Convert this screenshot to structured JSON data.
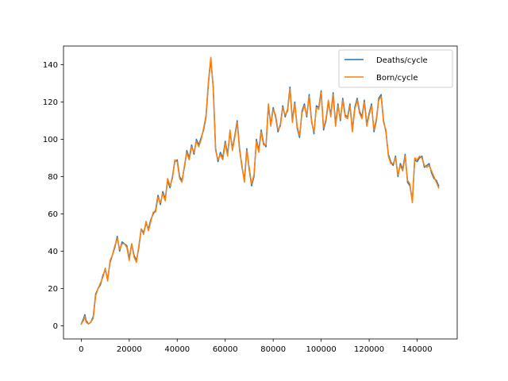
{
  "chart_data": {
    "type": "line",
    "title": "",
    "xlabel": "",
    "ylabel": "",
    "xlim": [
      -7400,
      156700
    ],
    "ylim": [
      -7,
      150
    ],
    "x_ticks": [
      0,
      20000,
      40000,
      60000,
      80000,
      100000,
      120000,
      140000
    ],
    "y_ticks": [
      0,
      20,
      40,
      60,
      80,
      100,
      120,
      140
    ],
    "grid": false,
    "legend": "top-right",
    "series": [
      {
        "name": "Deaths/cycle",
        "color": "#1f77b4",
        "x": [
          0,
          1000,
          1500,
          2000,
          3000,
          4000,
          5000,
          6000,
          7000,
          8000,
          9000,
          10000,
          11000,
          12000,
          13000,
          14000,
          15000,
          16000,
          17000,
          18000,
          19000,
          20000,
          21000,
          22000,
          23000,
          24000,
          25000,
          26000,
          27000,
          28000,
          29000,
          30000,
          31000,
          32000,
          33000,
          34000,
          35000,
          36000,
          37000,
          38000,
          39000,
          40000,
          41000,
          42000,
          43000,
          44000,
          45000,
          46000,
          47000,
          48000,
          49000,
          50000,
          51000,
          52000,
          53000,
          54000,
          55000,
          56000,
          57000,
          58000,
          59000,
          60000,
          61000,
          62000,
          63000,
          64000,
          65000,
          66000,
          67000,
          68000,
          69000,
          70000,
          71000,
          72000,
          73000,
          74000,
          75000,
          76000,
          77000,
          78000,
          79000,
          80000,
          81000,
          82000,
          83000,
          84000,
          85000,
          86000,
          87000,
          88000,
          89000,
          90000,
          91000,
          92000,
          93000,
          94000,
          95000,
          96000,
          97000,
          98000,
          99000,
          100000,
          101000,
          102000,
          103000,
          104000,
          105000,
          106000,
          107000,
          108000,
          109000,
          110000,
          111000,
          112000,
          113000,
          114000,
          115000,
          116000,
          117000,
          118000,
          119000,
          120000,
          121000,
          122000,
          123000,
          124000,
          125000,
          126000,
          127000,
          128000,
          129000,
          130000,
          131000,
          132000,
          133000,
          134000,
          135000,
          136000,
          137000,
          138000,
          139000,
          140000,
          141000,
          142000,
          143000,
          144000,
          145000,
          146000,
          147000,
          148000,
          149000
        ],
        "y": [
          1,
          4,
          6,
          3,
          1,
          2,
          5,
          17,
          20,
          22,
          27,
          30,
          25,
          34,
          38,
          42,
          48,
          40,
          45,
          44,
          43,
          36,
          44,
          38,
          35,
          42,
          52,
          50,
          55,
          52,
          57,
          60,
          62,
          70,
          65,
          72,
          68,
          78,
          74,
          80,
          88,
          89,
          80,
          78,
          85,
          94,
          90,
          97,
          92,
          100,
          97,
          101,
          105,
          112,
          130,
          143,
          128,
          95,
          88,
          93,
          90,
          99,
          92,
          104,
          95,
          102,
          110,
          95,
          85,
          78,
          95,
          84,
          75,
          80,
          100,
          94,
          105,
          98,
          96,
          118,
          108,
          117,
          112,
          104,
          108,
          118,
          112,
          116,
          128,
          110,
          120,
          106,
          101,
          115,
          119,
          112,
          124,
          110,
          103,
          118,
          117,
          126,
          105,
          110,
          120,
          113,
          125,
          108,
          119,
          110,
          122,
          113,
          112,
          119,
          105,
          117,
          122,
          115,
          112,
          121,
          108,
          114,
          119,
          104,
          110,
          122,
          124,
          110,
          104,
          92,
          88,
          86,
          91,
          80,
          87,
          84,
          92,
          77,
          75,
          67,
          89,
          88,
          90,
          91,
          85,
          86,
          87,
          82,
          79,
          78,
          75
        ]
      },
      {
        "name": "Born/cycle",
        "color": "#ff7f0e",
        "x": [
          0,
          1000,
          1500,
          2000,
          3000,
          4000,
          5000,
          6000,
          7000,
          8000,
          9000,
          10000,
          11000,
          12000,
          13000,
          14000,
          15000,
          16000,
          17000,
          18000,
          19000,
          20000,
          21000,
          22000,
          23000,
          24000,
          25000,
          26000,
          27000,
          28000,
          29000,
          30000,
          31000,
          32000,
          33000,
          34000,
          35000,
          36000,
          37000,
          38000,
          39000,
          40000,
          41000,
          42000,
          43000,
          44000,
          45000,
          46000,
          47000,
          48000,
          49000,
          50000,
          51000,
          52000,
          53000,
          54000,
          55000,
          56000,
          57000,
          58000,
          59000,
          60000,
          61000,
          62000,
          63000,
          64000,
          65000,
          66000,
          67000,
          68000,
          69000,
          70000,
          71000,
          72000,
          73000,
          74000,
          75000,
          76000,
          77000,
          78000,
          79000,
          80000,
          81000,
          82000,
          83000,
          84000,
          85000,
          86000,
          87000,
          88000,
          89000,
          90000,
          91000,
          92000,
          93000,
          94000,
          95000,
          96000,
          97000,
          98000,
          99000,
          100000,
          101000,
          102000,
          103000,
          104000,
          105000,
          106000,
          107000,
          108000,
          109000,
          110000,
          111000,
          112000,
          113000,
          114000,
          115000,
          116000,
          117000,
          118000,
          119000,
          120000,
          121000,
          122000,
          123000,
          124000,
          125000,
          126000,
          127000,
          128000,
          129000,
          130000,
          131000,
          132000,
          133000,
          134000,
          135000,
          136000,
          137000,
          138000,
          139000,
          140000,
          141000,
          142000,
          143000,
          144000,
          145000,
          146000,
          147000,
          148000,
          149000
        ],
        "y": [
          1,
          3,
          5,
          2,
          1,
          2,
          4,
          16,
          20,
          23,
          26,
          31,
          24,
          35,
          38,
          43,
          47,
          41,
          44,
          44,
          42,
          35,
          44,
          37,
          34,
          43,
          52,
          49,
          56,
          51,
          56,
          61,
          61,
          69,
          66,
          71,
          67,
          79,
          75,
          79,
          89,
          88,
          79,
          77,
          86,
          93,
          89,
          96,
          93,
          99,
          96,
          100,
          106,
          113,
          131,
          144,
          127,
          94,
          89,
          92,
          89,
          98,
          91,
          105,
          94,
          101,
          109,
          94,
          86,
          77,
          94,
          85,
          76,
          81,
          99,
          93,
          104,
          97,
          97,
          119,
          107,
          116,
          113,
          105,
          107,
          117,
          113,
          115,
          127,
          109,
          119,
          107,
          102,
          114,
          118,
          113,
          123,
          109,
          104,
          117,
          116,
          125,
          106,
          111,
          121,
          112,
          124,
          107,
          118,
          111,
          121,
          112,
          111,
          118,
          104,
          116,
          121,
          114,
          111,
          120,
          107,
          113,
          118,
          105,
          111,
          121,
          123,
          109,
          105,
          91,
          87,
          87,
          90,
          81,
          86,
          83,
          91,
          78,
          76,
          66,
          90,
          89,
          91,
          90,
          86,
          85,
          86,
          83,
          80,
          77,
          74
        ]
      }
    ]
  }
}
